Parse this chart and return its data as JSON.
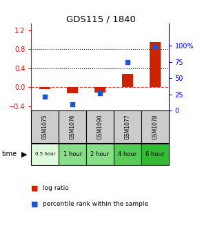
{
  "title": "GDS115 / 1840",
  "samples": [
    "GSM1075",
    "GSM1076",
    "GSM1090",
    "GSM1077",
    "GSM1078"
  ],
  "time_labels": [
    "0.5 hour",
    "1 hour",
    "2 hour",
    "4 hour",
    "6 hour"
  ],
  "time_colors": [
    "#ddfadd",
    "#88dd88",
    "#88dd88",
    "#55cc55",
    "#33bb33"
  ],
  "log_ratios": [
    -0.04,
    -0.13,
    -0.12,
    0.28,
    0.95
  ],
  "percentile_ranks": [
    22,
    10,
    27,
    75,
    98
  ],
  "bar_color": "#cc2200",
  "dot_color": "#2255cc",
  "ylim_left": [
    -0.5,
    1.35
  ],
  "ylim_right": [
    0,
    135
  ],
  "yticks_left": [
    -0.4,
    0.0,
    0.4,
    0.8,
    1.2
  ],
  "yticks_right": [
    0,
    25,
    50,
    75,
    100
  ],
  "hlines": [
    0.0,
    0.4,
    0.8
  ],
  "hline_colors": [
    "#dd3333",
    "#000000",
    "#000000"
  ],
  "hline_styles": [
    "--",
    ":",
    ":"
  ],
  "background_color": "#ffffff",
  "legend_red": "log ratio",
  "legend_blue": "percentile rank within the sample"
}
